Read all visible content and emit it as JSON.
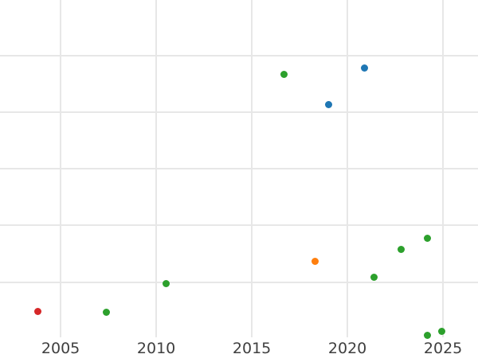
{
  "chart_data": {
    "type": "scatter",
    "title": "",
    "xlabel": "",
    "ylabel": "",
    "grid": true,
    "legend": null,
    "x_tick_labels": [
      "2005",
      "2010",
      "2015",
      "2020",
      "2025"
    ],
    "x_ticks": [
      2005,
      2010,
      2015,
      2020,
      2025
    ],
    "xlim": [
      2001.83,
      2026.83
    ],
    "ylim": [
      -0.34,
      5.98
    ],
    "y_gridlines": [
      1,
      2,
      3,
      4,
      5
    ],
    "y_tick_labels_visible": false,
    "plot_area_bottom_u": 0.03,
    "marker_diameter_px": 9,
    "note": "Frame is cropped: no title, no y-axis tick labels visible. Y values are in gridline units (1 unit per horizontal gridline spacing, 0 = bottom edge of plot area).",
    "series": [
      {
        "name": "series-blue",
        "color": "#1f77b4",
        "points": [
          {
            "x": 2019.0,
            "y": 4.14
          },
          {
            "x": 2020.9,
            "y": 4.78
          }
        ]
      },
      {
        "name": "series-orange",
        "color": "#ff7f0e",
        "points": [
          {
            "x": 2018.3,
            "y": 1.36
          }
        ]
      },
      {
        "name": "series-green",
        "color": "#2ca02c",
        "points": [
          {
            "x": 2007.4,
            "y": 0.47
          },
          {
            "x": 2010.5,
            "y": 0.98
          },
          {
            "x": 2016.7,
            "y": 4.66
          },
          {
            "x": 2021.4,
            "y": 1.09
          },
          {
            "x": 2022.8,
            "y": 1.58
          },
          {
            "x": 2024.2,
            "y": 1.78
          },
          {
            "x": 2024.2,
            "y": 0.06
          },
          {
            "x": 2024.95,
            "y": 0.13
          }
        ]
      },
      {
        "name": "series-red",
        "color": "#d62728",
        "points": [
          {
            "x": 2003.8,
            "y": 0.48
          }
        ]
      }
    ]
  },
  "style": {
    "background": "#ffffff",
    "grid_color": "#e7e7e7",
    "tick_label_color": "#3f3f3f"
  }
}
